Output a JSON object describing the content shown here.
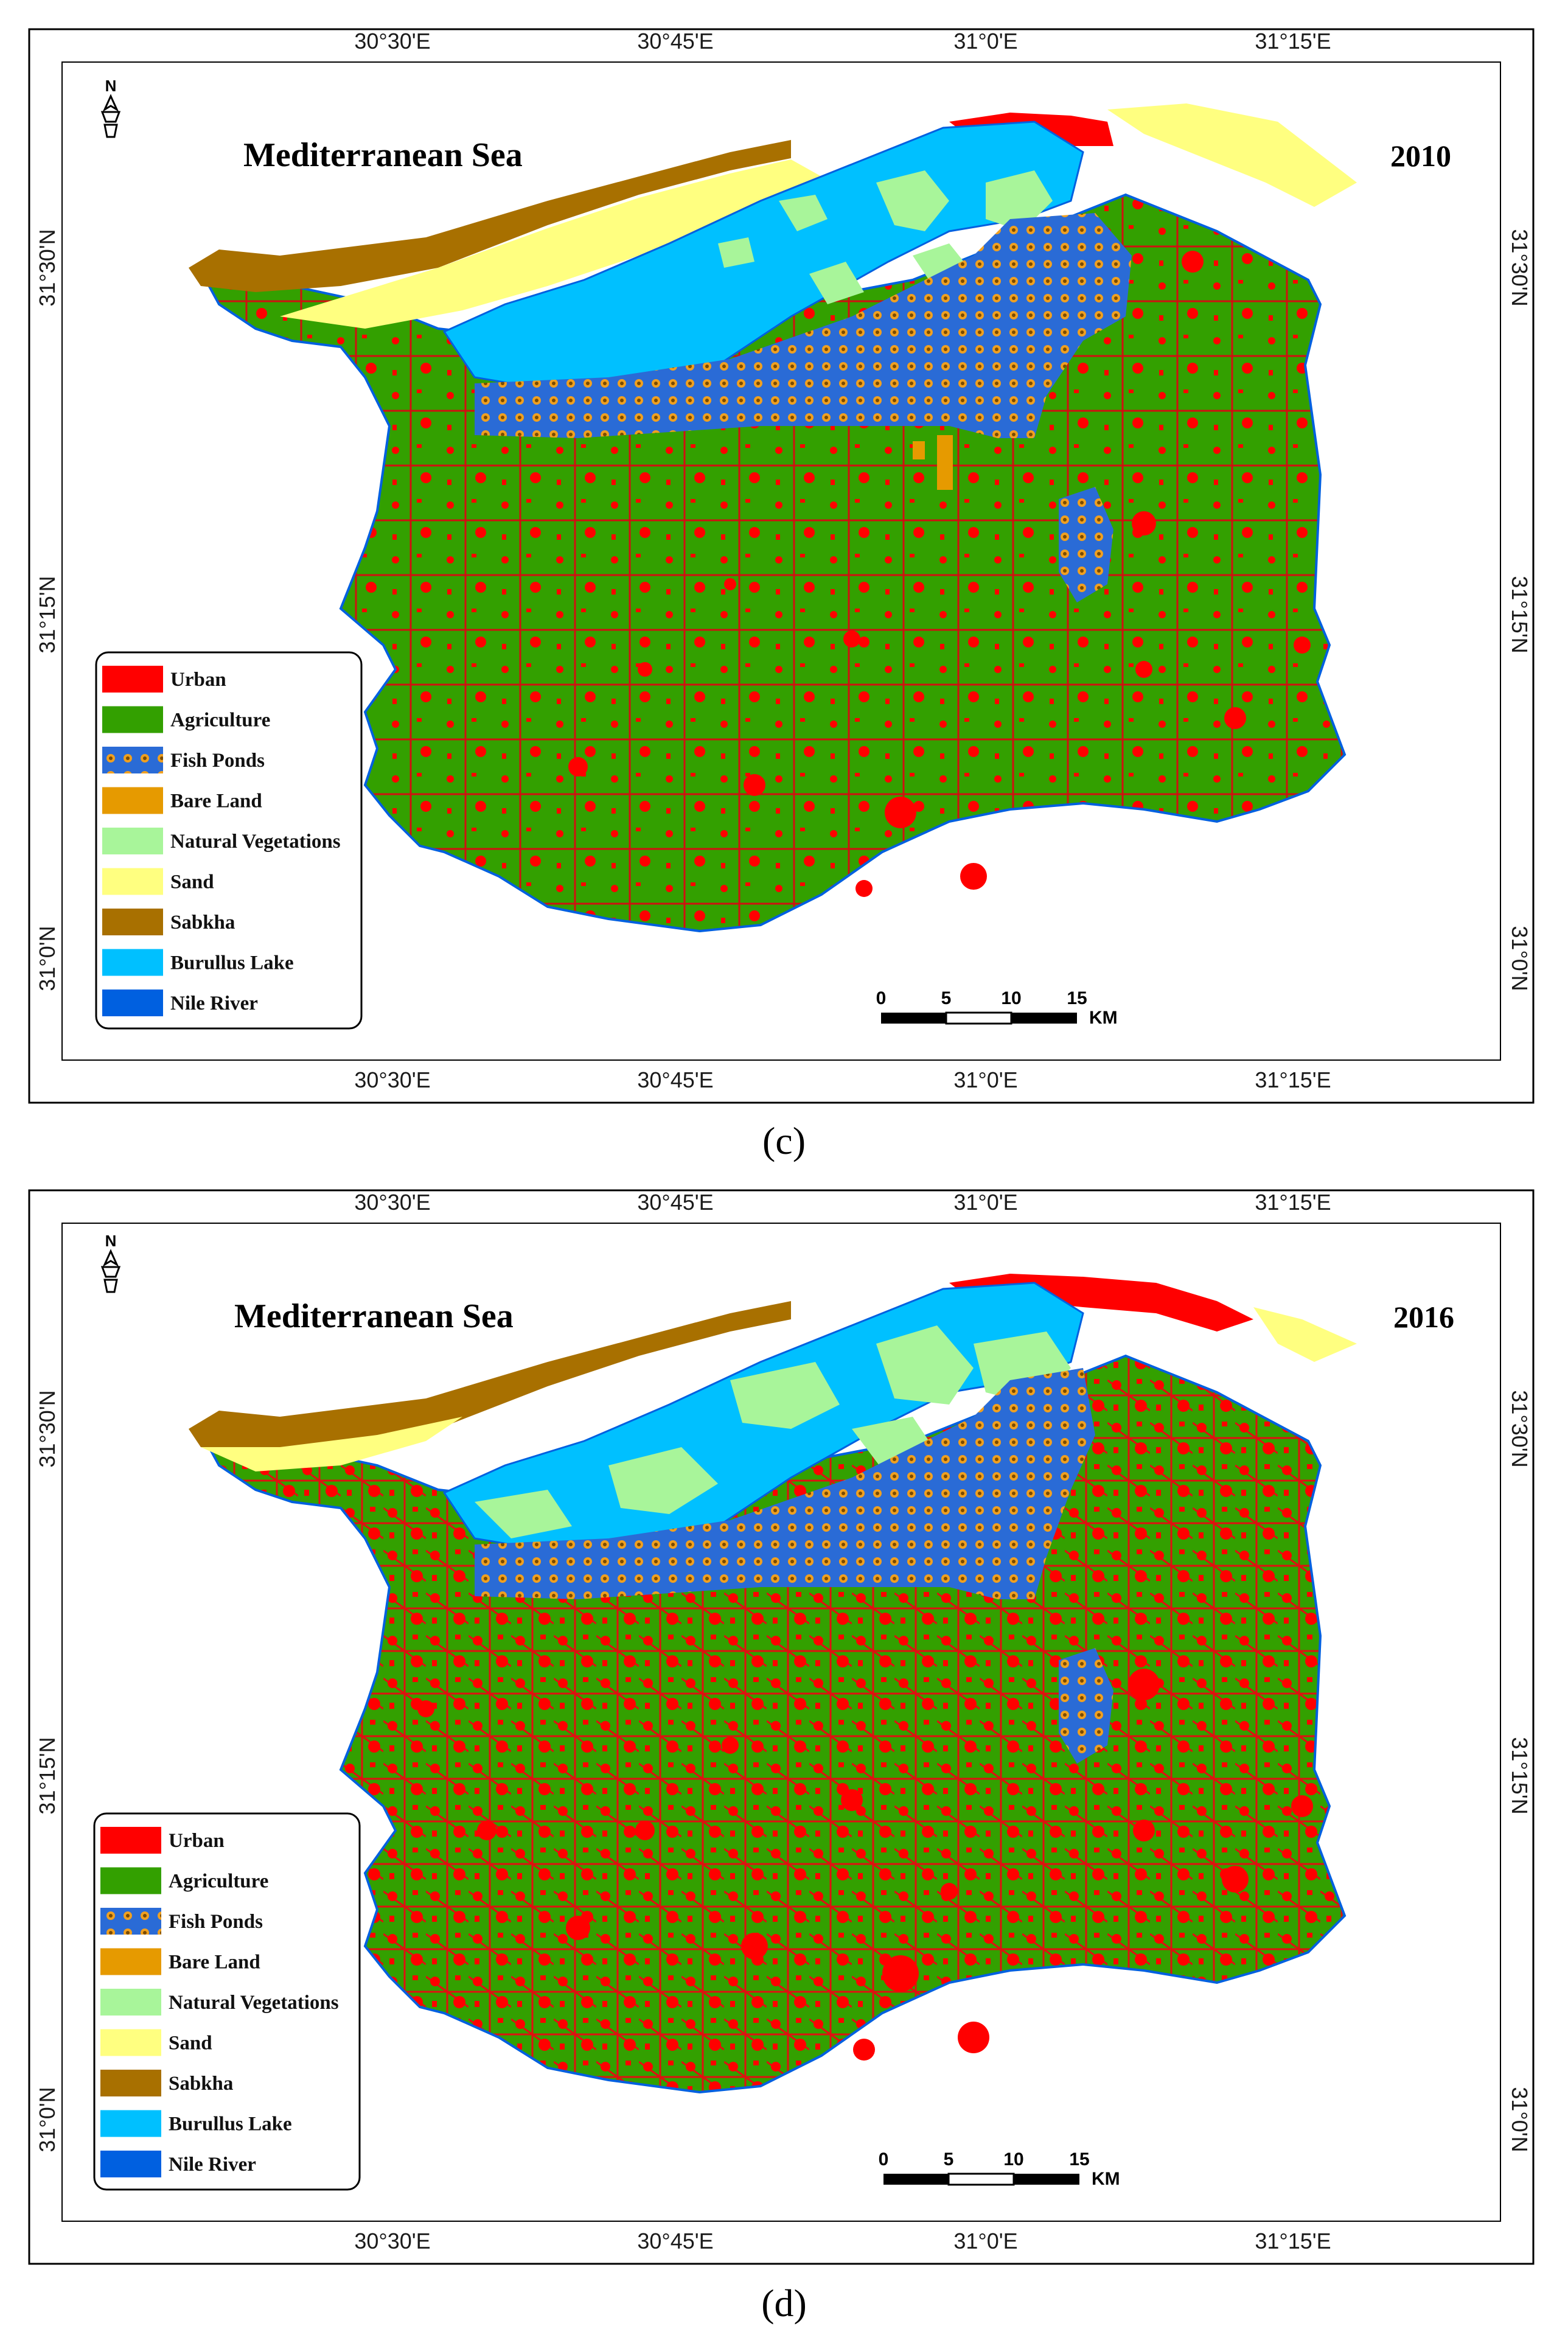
{
  "maps": [
    {
      "year": "2010",
      "caption": "(c)",
      "sea_label": "Mediterranean Sea",
      "north": "N",
      "top_ticks": [
        "30°30'E",
        "30°45'E",
        "31°0'E",
        "31°15'E"
      ],
      "bottom_ticks": [
        "30°30'E",
        "30°45'E",
        "31°0'E",
        "31°15'E"
      ],
      "left_ticks": [
        "31°30'N",
        "31°15'N",
        "31°0'N"
      ],
      "right_ticks": [
        "31°30'N",
        "31°15'N",
        "31°0'N"
      ],
      "scale": {
        "labels": [
          "0",
          "5",
          "10",
          "15"
        ],
        "unit": "KM"
      }
    },
    {
      "year": "2016",
      "caption": "(d)",
      "sea_label": "Mediterranean Sea",
      "north": "N",
      "top_ticks": [
        "30°30'E",
        "30°45'E",
        "31°0'E",
        "31°15'E"
      ],
      "bottom_ticks": [
        "30°30'E",
        "30°45'E",
        "31°0'E",
        "31°15'E"
      ],
      "left_ticks": [
        "31°30'N",
        "31°15'N",
        "31°0'N"
      ],
      "right_ticks": [
        "31°30'N",
        "31°15'N",
        "31°0'N"
      ],
      "scale": {
        "labels": [
          "0",
          "5",
          "10",
          "15"
        ],
        "unit": "KM"
      }
    }
  ],
  "legend": [
    {
      "label": "Urban",
      "color": "#ff0000"
    },
    {
      "label": "Agriculture",
      "color": "#33a000"
    },
    {
      "label": "Fish Ponds",
      "color": "#2a6bd6"
    },
    {
      "label": "Bare Land",
      "color": "#e69a00"
    },
    {
      "label": "Natural Vegetations",
      "color": "#a8f59a"
    },
    {
      "label": "Sand",
      "color": "#ffff80"
    },
    {
      "label": "Sabkha",
      "color": "#a87000"
    },
    {
      "label": "Burullus Lake",
      "color": "#00c0ff"
    },
    {
      "label": "Nile River",
      "color": "#0060e0"
    }
  ],
  "colors": {
    "urban": "#ff0000",
    "agriculture": "#33a000",
    "fish_ponds": "#2a6bd6",
    "fish_ponds_dot": "#f0a020",
    "bare_land": "#e69a00",
    "natural_veg": "#a8f59a",
    "sand": "#ffff80",
    "sabkha": "#a87000",
    "lake": "#00c0ff",
    "river": "#0060e0"
  }
}
